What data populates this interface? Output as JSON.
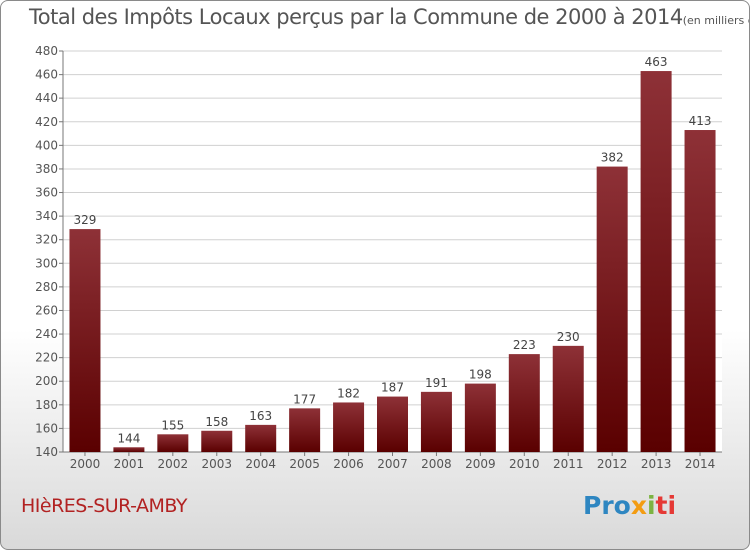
{
  "title": "Total des Impôts Locaux perçus par la Commune de 2000 à 2014",
  "title_unit": "(en milliers d'€)",
  "commune": "HIèRES-SUR-AMBY",
  "logo": {
    "p1": "Pro",
    "p2": "x",
    "p3": "i",
    "p4": "ti"
  },
  "colors": {
    "bar_top": "#8e3137",
    "bar_bottom": "#5a0000",
    "commune": "#b22222",
    "text": "#555555"
  },
  "chart_data": {
    "type": "bar",
    "categories": [
      "2000",
      "2001",
      "2002",
      "2003",
      "2004",
      "2005",
      "2006",
      "2007",
      "2008",
      "2009",
      "2010",
      "2011",
      "2012",
      "2013",
      "2014"
    ],
    "values": [
      329,
      144,
      155,
      158,
      163,
      177,
      182,
      187,
      191,
      198,
      223,
      230,
      382,
      463,
      413
    ],
    "ylim": [
      140,
      480
    ],
    "yticks": [
      140,
      160,
      180,
      200,
      220,
      240,
      260,
      280,
      300,
      320,
      340,
      360,
      380,
      400,
      420,
      440,
      460,
      480
    ],
    "grid": true
  }
}
